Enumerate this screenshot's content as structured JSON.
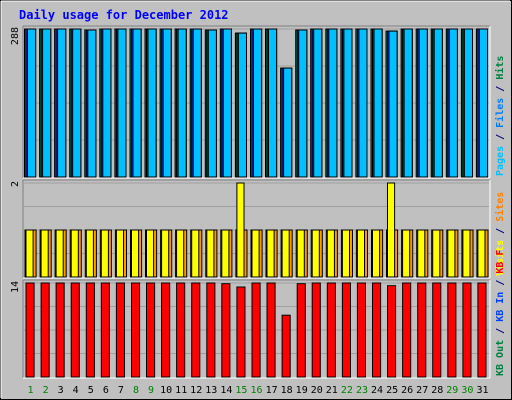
{
  "chart_data": {
    "type": "bar",
    "title": "Daily usage for December 2012",
    "x": [
      1,
      2,
      3,
      4,
      5,
      6,
      7,
      8,
      9,
      10,
      11,
      12,
      13,
      14,
      15,
      16,
      17,
      18,
      19,
      20,
      21,
      22,
      23,
      24,
      25,
      26,
      27,
      28,
      29,
      30,
      31
    ],
    "weekend_days": [
      1,
      2,
      8,
      9,
      15,
      16,
      22,
      23,
      29,
      30
    ],
    "panels": [
      {
        "name": "top",
        "ymax_label": "288",
        "ymax": 288,
        "legend": [
          {
            "text": "Pages",
            "color": "#00C0FF"
          },
          {
            "text": "/",
            "color": "#000080"
          },
          {
            "text": "Files",
            "color": "#0080FF"
          },
          {
            "text": "/",
            "color": "#000080"
          },
          {
            "text": "Hits",
            "color": "#008040"
          }
        ],
        "series": [
          {
            "name": "Hits",
            "color": "#00805C",
            "values": [
              288,
              288,
              288,
              288,
              286,
              288,
              288,
              288,
              288,
              288,
              288,
              288,
              286,
              288,
              280,
              288,
              288,
              212,
              286,
              288,
              288,
              288,
              288,
              288,
              284,
              288,
              288,
              288,
              288,
              288,
              288
            ]
          },
          {
            "name": "Files",
            "color": "#0040FF",
            "values": [
              288,
              288,
              288,
              288,
              286,
              288,
              288,
              288,
              288,
              288,
              288,
              288,
              286,
              288,
              280,
              288,
              288,
              212,
              286,
              288,
              288,
              288,
              288,
              288,
              284,
              288,
              288,
              288,
              288,
              288,
              288
            ]
          },
          {
            "name": "Pages",
            "color": "#00C0FF",
            "values": [
              288,
              288,
              288,
              288,
              286,
              288,
              288,
              288,
              288,
              288,
              288,
              288,
              286,
              288,
              280,
              288,
              288,
              212,
              286,
              288,
              288,
              288,
              288,
              288,
              284,
              288,
              288,
              288,
              288,
              288,
              288
            ]
          }
        ]
      },
      {
        "name": "middle",
        "ymax_label": "2",
        "ymax": 2,
        "legend": [
          {
            "text": "Visits",
            "color": "#FFFF00"
          },
          {
            "text": "/",
            "color": "#000080"
          },
          {
            "text": "Sites",
            "color": "#FF8000"
          }
        ],
        "series": [
          {
            "name": "Visits",
            "color": "#FFFF00",
            "values": [
              1,
              1,
              1,
              1,
              1,
              1,
              1,
              1,
              1,
              1,
              1,
              1,
              1,
              1,
              2,
              1,
              1,
              1,
              1,
              1,
              1,
              1,
              1,
              1,
              2,
              1,
              1,
              1,
              1,
              1,
              1
            ]
          },
          {
            "name": "Sites",
            "color": "#FF9900",
            "values": [
              1,
              1,
              1,
              1,
              1,
              1,
              1,
              1,
              1,
              1,
              1,
              1,
              1,
              1,
              1,
              1,
              1,
              1,
              1,
              1,
              1,
              1,
              1,
              1,
              1,
              1,
              1,
              1,
              1,
              1,
              1
            ]
          }
        ]
      },
      {
        "name": "bottom",
        "ymax_label": "14",
        "ymax": 14,
        "legend": [
          {
            "text": "KB Out",
            "color": "#008040"
          },
          {
            "text": "/",
            "color": "#000080"
          },
          {
            "text": "KB In",
            "color": "#0040FF"
          },
          {
            "text": "/",
            "color": "#000080"
          },
          {
            "text": "KB F",
            "color": "#FF0000"
          }
        ],
        "series": [
          {
            "name": "KB F",
            "color": "#FF0000",
            "values": [
              14,
              14,
              14,
              14,
              14,
              14,
              14,
              14,
              14,
              14,
              14,
              14,
              14,
              13.9,
              13.4,
              14,
              14,
              9.2,
              13.9,
              14,
              14,
              14,
              14,
              14,
              13.6,
              14,
              14,
              14,
              14,
              14,
              14
            ]
          }
        ]
      }
    ]
  }
}
